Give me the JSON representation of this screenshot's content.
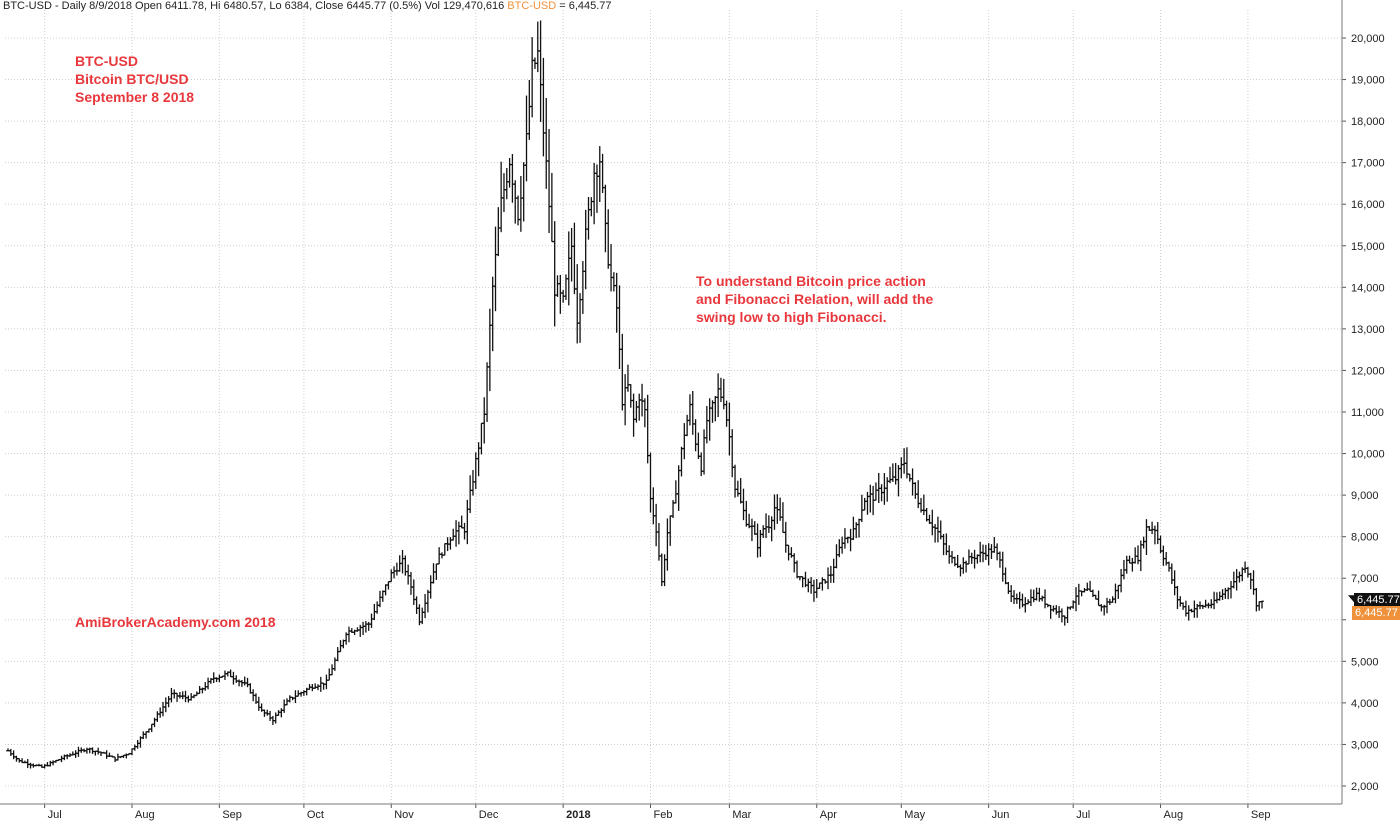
{
  "header": {
    "title_text": "BTC-USD - Daily 8/9/2018 Open 6411.78, Hi 6480.57, Lo 6384, Close 6445.77 (0.5%) Vol 129,470,616",
    "symbol_text": "BTC-USD",
    "value_text": " = 6,445.77"
  },
  "annotations": {
    "top_left": [
      "BTC-USD",
      "Bitcoin BTC/USD",
      "September 8 2018"
    ],
    "middle": [
      "To understand Bitcoin price action",
      "and Fibonacci Relation, will add the",
      "swing low to high Fibonacci."
    ],
    "watermark": "AmiBrokerAcademy.com  2018"
  },
  "badges": {
    "last_price": "6,445.77",
    "indicator_price": "6,445.77"
  },
  "colors": {
    "annotation": "#e8383d",
    "symbol": "#f0913b",
    "badge_dark": "#111111",
    "badge_orange": "#f0913b",
    "grid": "#cfcfcf",
    "price": "#111111"
  },
  "chart_data": {
    "type": "ohlc",
    "title": "",
    "xlabel": "",
    "ylabel": "",
    "ylim": [
      1500,
      20500
    ],
    "y_ticks": [
      2000,
      3000,
      4000,
      5000,
      6000,
      7000,
      8000,
      9000,
      10000,
      11000,
      12000,
      13000,
      14000,
      15000,
      16000,
      17000,
      18000,
      19000,
      20000
    ],
    "y_tick_labels": [
      "2,000",
      "3,000",
      "4,000",
      "5,000",
      "",
      "7,000",
      "8,000",
      "9,000",
      "10,000",
      "11,000",
      "12,000",
      "13,000",
      "14,000",
      "15,000",
      "16,000",
      "17,000",
      "18,000",
      "19,000",
      "20,000"
    ],
    "x_ticks": [
      {
        "label": "Jul",
        "day": 13,
        "bold": false
      },
      {
        "label": "Aug",
        "day": 44,
        "bold": false
      },
      {
        "label": "Sep",
        "day": 75,
        "bold": false
      },
      {
        "label": "Oct",
        "day": 105,
        "bold": false
      },
      {
        "label": "Nov",
        "day": 136,
        "bold": false
      },
      {
        "label": "Dec",
        "day": 166,
        "bold": false
      },
      {
        "label": "2018",
        "day": 197,
        "bold": true
      },
      {
        "label": "Feb",
        "day": 228,
        "bold": false
      },
      {
        "label": "Mar",
        "day": 256,
        "bold": false
      },
      {
        "label": "Apr",
        "day": 287,
        "bold": false
      },
      {
        "label": "May",
        "day": 317,
        "bold": false
      },
      {
        "label": "Jun",
        "day": 348,
        "bold": false
      },
      {
        "label": "Jul",
        "day": 378,
        "bold": false
      },
      {
        "label": "Aug",
        "day": 409,
        "bold": false
      },
      {
        "label": "Sep",
        "day": 440,
        "bold": false
      }
    ],
    "x_days": [
      0,
      445
    ],
    "anchor_closes": [
      [
        0,
        2850
      ],
      [
        4,
        2600
      ],
      [
        12,
        2450
      ],
      [
        20,
        2700
      ],
      [
        28,
        2900
      ],
      [
        33,
        2800
      ],
      [
        38,
        2650
      ],
      [
        43,
        2800
      ],
      [
        50,
        3400
      ],
      [
        58,
        4200
      ],
      [
        65,
        4100
      ],
      [
        73,
        4600
      ],
      [
        78,
        4700
      ],
      [
        85,
        4400
      ],
      [
        90,
        3800
      ],
      [
        94,
        3600
      ],
      [
        100,
        4100
      ],
      [
        108,
        4400
      ],
      [
        113,
        4500
      ],
      [
        120,
        5700
      ],
      [
        128,
        5900
      ],
      [
        136,
        7100
      ],
      [
        140,
        7400
      ],
      [
        143,
        6800
      ],
      [
        146,
        6000
      ],
      [
        152,
        7400
      ],
      [
        158,
        8100
      ],
      [
        162,
        8200
      ],
      [
        166,
        9800
      ],
      [
        169,
        11000
      ],
      [
        172,
        14000
      ],
      [
        175,
        16000
      ],
      [
        178,
        17100
      ],
      [
        181,
        15800
      ],
      [
        184,
        17500
      ],
      [
        186,
        19200
      ],
      [
        188,
        19600
      ],
      [
        190,
        17800
      ],
      [
        192,
        16000
      ],
      [
        194,
        14000
      ],
      [
        197,
        13600
      ],
      [
        200,
        15000
      ],
      [
        202,
        13300
      ],
      [
        205,
        15200
      ],
      [
        208,
        16800
      ],
      [
        210,
        17100
      ],
      [
        212,
        15300
      ],
      [
        214,
        14200
      ],
      [
        216,
        13500
      ],
      [
        218,
        11300
      ],
      [
        220,
        11600
      ],
      [
        222,
        10800
      ],
      [
        224,
        11400
      ],
      [
        226,
        11000
      ],
      [
        228,
        8900
      ],
      [
        230,
        8200
      ],
      [
        232,
        6900
      ],
      [
        234,
        8100
      ],
      [
        236,
        8700
      ],
      [
        238,
        9600
      ],
      [
        240,
        10500
      ],
      [
        242,
        11100
      ],
      [
        244,
        10300
      ],
      [
        246,
        9700
      ],
      [
        248,
        10800
      ],
      [
        250,
        11100
      ],
      [
        252,
        11500
      ],
      [
        254,
        11300
      ],
      [
        256,
        10400
      ],
      [
        258,
        9200
      ],
      [
        260,
        8800
      ],
      [
        262,
        8400
      ],
      [
        264,
        8200
      ],
      [
        266,
        7800
      ],
      [
        268,
        8200
      ],
      [
        270,
        8300
      ],
      [
        272,
        8700
      ],
      [
        274,
        8400
      ],
      [
        276,
        7800
      ],
      [
        278,
        7500
      ],
      [
        280,
        7100
      ],
      [
        283,
        6900
      ],
      [
        286,
        6700
      ],
      [
        289,
        6900
      ],
      [
        292,
        7100
      ],
      [
        296,
        7900
      ],
      [
        300,
        8100
      ],
      [
        304,
        8900
      ],
      [
        308,
        9000
      ],
      [
        312,
        9300
      ],
      [
        315,
        9400
      ],
      [
        318,
        9800
      ],
      [
        322,
        9000
      ],
      [
        326,
        8500
      ],
      [
        330,
        8100
      ],
      [
        334,
        7500
      ],
      [
        338,
        7300
      ],
      [
        342,
        7500
      ],
      [
        346,
        7600
      ],
      [
        350,
        7700
      ],
      [
        352,
        7400
      ],
      [
        356,
        6500
      ],
      [
        360,
        6400
      ],
      [
        365,
        6600
      ],
      [
        370,
        6300
      ],
      [
        375,
        6100
      ],
      [
        379,
        6600
      ],
      [
        383,
        6700
      ],
      [
        388,
        6300
      ],
      [
        392,
        6500
      ],
      [
        397,
        7400
      ],
      [
        401,
        7500
      ],
      [
        404,
        8200
      ],
      [
        407,
        8200
      ],
      [
        409,
        7700
      ],
      [
        412,
        7200
      ],
      [
        415,
        6500
      ],
      [
        418,
        6200
      ],
      [
        422,
        6300
      ],
      [
        428,
        6400
      ],
      [
        432,
        6700
      ],
      [
        436,
        7000
      ],
      [
        439,
        7300
      ],
      [
        441,
        7000
      ],
      [
        443,
        6400
      ],
      [
        445,
        6446
      ]
    ],
    "last_close": 6445.77
  }
}
